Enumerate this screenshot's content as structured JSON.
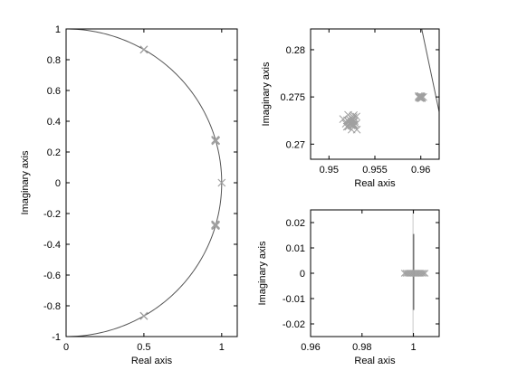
{
  "colors": {
    "background": "#ffffff",
    "axes": "#000000",
    "curve": "#555555",
    "marker": "#a0a0a0",
    "dense_marker": "#8c8c8c"
  },
  "chart_data": [
    {
      "type": "scatter",
      "name": "main",
      "xlabel": "Real axis",
      "ylabel": "Imaginary axis",
      "xlim": [
        0,
        1.1
      ],
      "ylim": [
        -1,
        1
      ],
      "xticks": [
        0,
        0.5,
        1
      ],
      "xtick_labels": [
        "0",
        "0.5",
        "1"
      ],
      "yticks": [
        1,
        0.8,
        0.6,
        0.4,
        0.2,
        0,
        -0.2,
        -0.4,
        -0.6,
        -0.8,
        -1
      ],
      "ytick_labels": [
        "1",
        "0.8",
        "0.6",
        "0.4",
        "0.2",
        "0",
        "-0.2",
        "-0.4",
        "-0.6",
        "-0.8",
        "-1"
      ],
      "grid": false,
      "curve": "unit circle",
      "points": [
        {
          "x": 0.5,
          "y": 0.866,
          "stack": 2
        },
        {
          "x": 0.961,
          "y": 0.275,
          "stack": 14
        },
        {
          "x": 1.0,
          "y": 0.0,
          "stack": 1
        },
        {
          "x": 0.961,
          "y": -0.275,
          "stack": 14
        },
        {
          "x": 0.5,
          "y": -0.866,
          "stack": 2
        }
      ]
    },
    {
      "type": "scatter",
      "name": "zoom-upper",
      "xlabel": "Real axis",
      "ylabel": "Imaginary axis",
      "xlim": [
        0.948,
        0.962
      ],
      "ylim": [
        0.2684,
        0.2822
      ],
      "xticks": [
        0.95,
        0.955,
        0.96
      ],
      "xtick_labels": [
        "0.95",
        "0.955",
        "0.96"
      ],
      "yticks": [
        0.28,
        0.275,
        0.27
      ],
      "ytick_labels": [
        "0.28",
        "0.275",
        "0.27"
      ],
      "grid": false,
      "curve_segment": [
        [
          0.9601,
          0.2822
        ],
        [
          0.962,
          0.2734
        ]
      ],
      "clusters": [
        {
          "cx": 0.9523,
          "cy": 0.2723,
          "spread_x": 0.0012,
          "spread_y": 0.0011,
          "count": 30
        },
        {
          "cx": 0.96,
          "cy": 0.275,
          "spread_x": 0.0003,
          "spread_y": 0.0002,
          "count": 20
        }
      ]
    },
    {
      "type": "scatter",
      "name": "zoom-lower",
      "xlabel": "Real axis",
      "ylabel": "Imaginary axis",
      "xlim": [
        0.96,
        1.01
      ],
      "ylim": [
        -0.025,
        0.025
      ],
      "xticks": [
        0.96,
        0.98,
        1
      ],
      "xtick_labels": [
        "0.96",
        "0.98",
        "1"
      ],
      "yticks": [
        0.02,
        0.01,
        0,
        -0.01,
        -0.02
      ],
      "ytick_labels": [
        "0.02",
        "0.01",
        "0",
        "-0.01",
        "-0.02"
      ],
      "grid": false,
      "vertical_segment": {
        "x": 1.0,
        "y_from": -0.0145,
        "y_to": 0.0155
      },
      "row_points": {
        "y": 0.0,
        "x_from": 0.9965,
        "x_to": 1.0045,
        "count": 14
      }
    }
  ]
}
